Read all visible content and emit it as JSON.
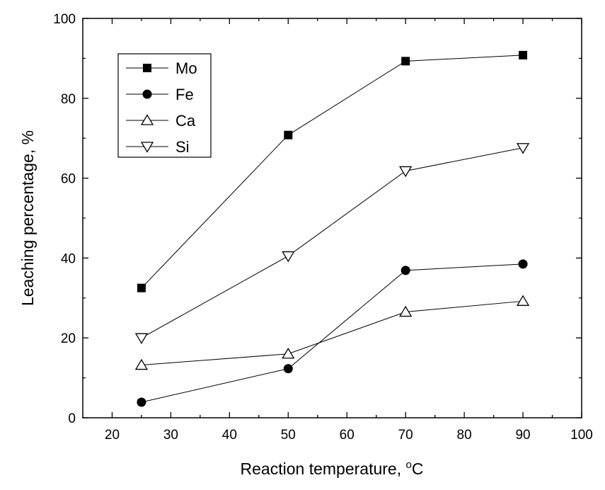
{
  "chart_data": {
    "type": "line",
    "title": "",
    "xlabel": "Reaction temperature, ",
    "xlabel_unit_sup": "o",
    "xlabel_unit": "C",
    "ylabel": "Leaching percentage, %",
    "xlim": [
      15,
      100
    ],
    "ylim": [
      0,
      100
    ],
    "xticks": [
      20,
      30,
      40,
      50,
      60,
      70,
      80,
      90,
      100
    ],
    "yticks": [
      0,
      20,
      40,
      60,
      80,
      100
    ],
    "x": [
      25,
      50,
      70,
      90
    ],
    "series": [
      {
        "name": "Mo",
        "marker": "square-filled",
        "values": [
          32.5,
          70.8,
          89.3,
          90.8
        ]
      },
      {
        "name": "Fe",
        "marker": "circle-filled",
        "values": [
          3.9,
          12.3,
          36.9,
          38.5
        ]
      },
      {
        "name": "Ca",
        "marker": "triangle-up-open",
        "values": [
          13.2,
          16.0,
          26.5,
          29.2
        ]
      },
      {
        "name": "Si",
        "marker": "triangle-down-open",
        "values": [
          20.0,
          40.5,
          61.8,
          67.6
        ]
      }
    ],
    "legend_position": "top-left",
    "grid": false,
    "line_color": "#000000"
  }
}
